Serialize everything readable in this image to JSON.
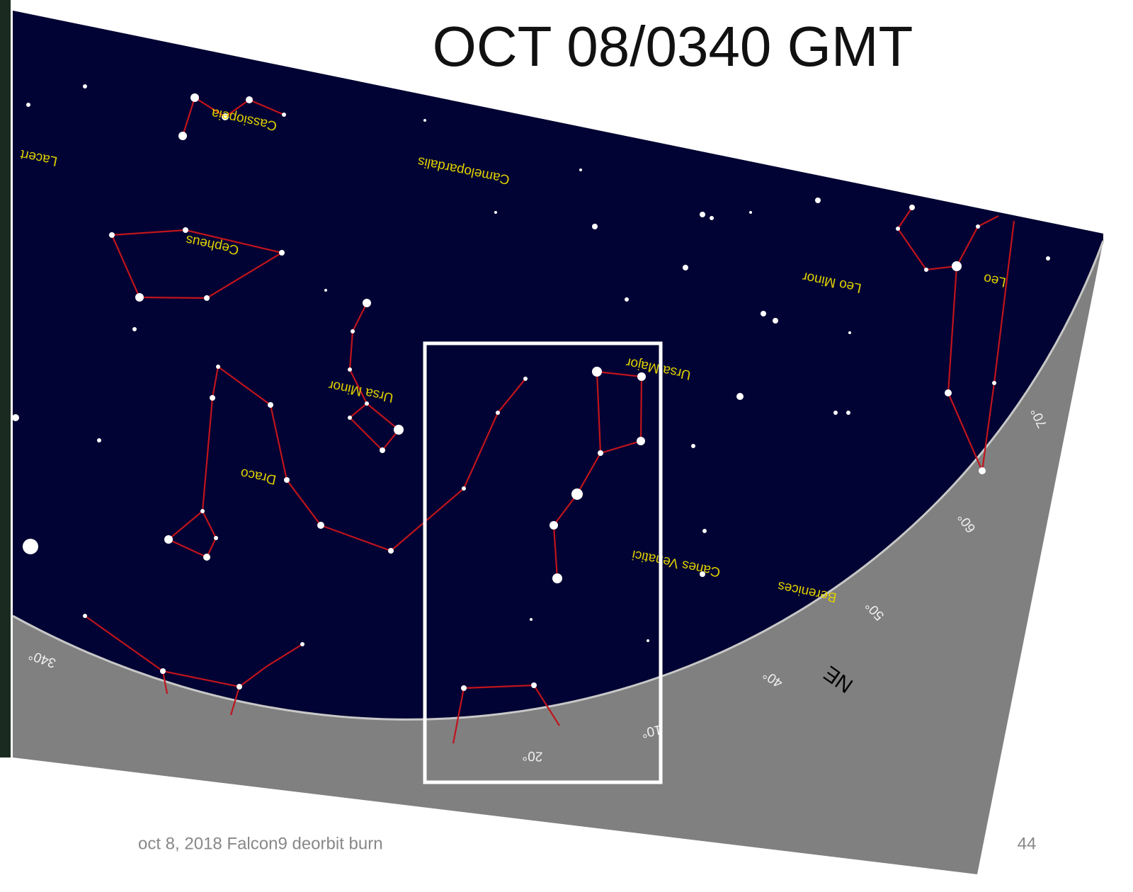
{
  "title": "OCT 08/0340 GMT",
  "footer": {
    "text": "oct 8, 2018 Falcon9 deorbit burn",
    "page_number": "44"
  },
  "sky_chart": {
    "constellations": [
      "Cassiopeia",
      "Lacert",
      "Camelopardalis",
      "Cepheus",
      "Leo Minor",
      "Leo",
      "Ursa Minor",
      "Ursa Major",
      "Draco",
      "Canes Venatici",
      "Berenices"
    ],
    "azimuth_labels": [
      "340°",
      "20°",
      "10°",
      "40°",
      "50°",
      "60°",
      "70°"
    ],
    "direction": "NE"
  }
}
